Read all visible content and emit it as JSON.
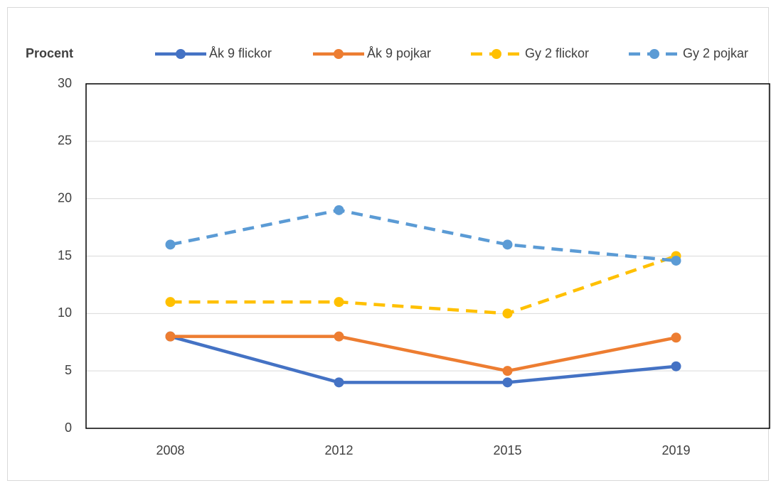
{
  "chart_data": {
    "type": "line",
    "ylabel": "Procent",
    "categories": [
      "2008",
      "2012",
      "2015",
      "2019"
    ],
    "series": [
      {
        "name": "Åk 9 flickor",
        "color": "#4472c4",
        "dashed": false,
        "values": [
          8,
          4,
          4,
          5.4
        ]
      },
      {
        "name": "Åk 9 pojkar",
        "color": "#ed7d31",
        "dashed": false,
        "values": [
          8,
          8,
          5,
          7.9
        ]
      },
      {
        "name": "Gy 2 flickor",
        "color": "#ffc000",
        "dashed": true,
        "values": [
          11,
          11,
          10,
          15
        ]
      },
      {
        "name": "Gy 2 pojkar",
        "color": "#5b9bd5",
        "dashed": true,
        "values": [
          16,
          19,
          16,
          14.6
        ]
      }
    ],
    "ylim": [
      0,
      30
    ],
    "yticks": [
      0,
      5,
      10,
      15,
      20,
      25,
      30
    ],
    "grid": true,
    "legend": "top"
  }
}
